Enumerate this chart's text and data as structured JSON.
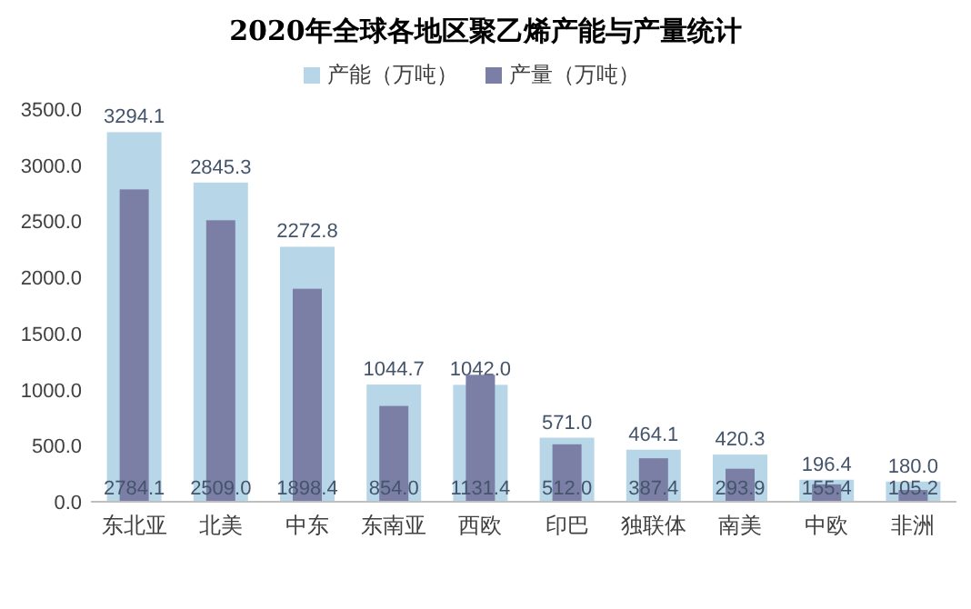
{
  "chart_data": {
    "type": "bar",
    "title": "2020年全球各地区聚乙烯产能与产量统计",
    "categories": [
      "东北亚",
      "北美",
      "中东",
      "东南亚",
      "西欧",
      "印巴",
      "独联体",
      "南美",
      "中欧",
      "非洲"
    ],
    "series": [
      {
        "name": "产能（万吨）",
        "color": "#b7d7e8",
        "values": [
          3294.1,
          2845.3,
          2272.8,
          1044.7,
          1042,
          571,
          464.1,
          420.3,
          196.4,
          180
        ],
        "value_labels": [
          "3294.1",
          "2845.3",
          "2272.8",
          "1044.7",
          "1042.0",
          "571.0",
          "464.1",
          "420.3",
          "196.4",
          "180.0"
        ]
      },
      {
        "name": "产量（万吨）",
        "color": "#7b7fa6",
        "values": [
          2784.1,
          2509,
          1898.4,
          854,
          1131.4,
          512,
          387.4,
          293.9,
          155.4,
          105.2
        ],
        "value_labels": [
          "2784.1",
          "2509.0",
          "1898.4",
          "854.0",
          "1131.4",
          "512.0",
          "387.4",
          "293.9",
          "155.4",
          "105.2"
        ]
      }
    ],
    "ylim": [
      0,
      3500
    ],
    "yticks": [
      {
        "value": 0,
        "label": "0.0"
      },
      {
        "value": 500,
        "label": "500.0"
      },
      {
        "value": 1000,
        "label": "1000.0"
      },
      {
        "value": 1500,
        "label": "1500.0"
      },
      {
        "value": 2000,
        "label": "2000.0"
      },
      {
        "value": 2500,
        "label": "2500.0"
      },
      {
        "value": 3000,
        "label": "3000.0"
      },
      {
        "value": 3500,
        "label": "3500.0"
      }
    ],
    "legend": "top"
  }
}
